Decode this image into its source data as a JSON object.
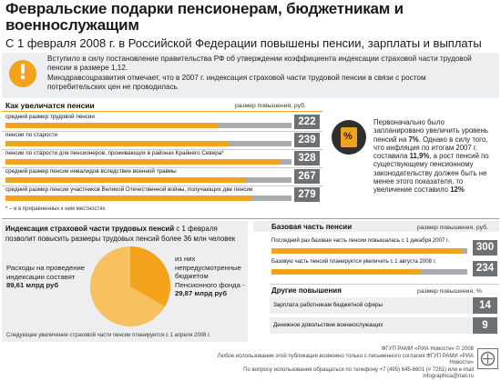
{
  "header": {
    "title": "Февральские подарки пенсионерам, бюджетникам и военнослужащим",
    "subtitle": "С 1 февраля 2008 г. в Российской Федерации повышены пенсии, зарплаты и выплаты"
  },
  "top_note": {
    "icon": "exclamation-icon",
    "p1": "Вступило в силу постановление правительства РФ об утверждении коэффициента индексации страховой части трудовой пенсии в размере 1,12.",
    "p2": "Минздравсоцразвития отмечает, что в 2007 г. индексация страховой части трудовой пенсии в связи с ростом потребительских цен не проводилась"
  },
  "pensions": {
    "title": "Как увеличатся пенсии",
    "units": "размер повышения, руб.",
    "rows": [
      {
        "label": "средний размер трудовой пенсии",
        "value": "222",
        "amount": 222
      },
      {
        "label": "пенсии по старости",
        "value": "239",
        "amount": 239
      },
      {
        "label": "пенсии по старости для пенсионеров, проживающих в районах Крайнего Севера*",
        "value": "328",
        "amount": 328
      },
      {
        "label": "средний размер пенсии инвалидов вследствие военной травмы",
        "value": "267",
        "amount": 267
      },
      {
        "label": "средний размер пенсии участников Великой Отечественной войны, получающих две пенсии",
        "value": "279",
        "amount": 279
      }
    ],
    "footnote": "* – и в приравненных к ним местностях"
  },
  "side_note": {
    "t1": "Первоначально было запланировано увеличить уровень пенсий на ",
    "pct1": "7%",
    "t2": ". Однако в силу того, что инфляция по итогам 2007 г. составила ",
    "pct2": "11,9%",
    "t3": ", а рост пенсий по существующему пенсионному законодательству должен быть не менее этого показателя, то увеличение составило ",
    "pct3": "12%",
    "icon_label": "%"
  },
  "indexation": {
    "title": "Индексация страховой части трудовых пенсий",
    "title_tail": " с 1 февраля",
    "line2": "позволит повысить размеры трудовых пенсий более 36 млн человек",
    "left_text1": "Расходы на проведение индексации составят",
    "left_bold": "89,61 млрд руб",
    "right_text1": "из них непредусмотренные бюджетом Пенсионного фонда -",
    "right_bold": "29,87 млрд руб",
    "pie_share": 0.333,
    "note": "Следующее увеличение страховой части пенсии планируется с 1 апреля 2008 г."
  },
  "base_pension": {
    "title": "Базовая часть пенсии",
    "units": "размер повышения, руб.",
    "rows": [
      {
        "label": "Последний раз базовая часть пенсии повышалась с 1 декабря 2007 г.",
        "value": "300",
        "amount": 300
      },
      {
        "label": "Базовую часть пенсий планируется увеличить с 1 августа 2008 г.",
        "value": "234",
        "amount": 234
      }
    ]
  },
  "other": {
    "title": "Другие повышения",
    "units": "размер повышения, %",
    "rows": [
      {
        "label": "Зарплата работникам бюджетной сферы",
        "value": "14"
      },
      {
        "label": "Денежное довольствие военнослужащих",
        "value": "9"
      }
    ]
  },
  "footer": {
    "line1": "ФГУП РАМИ «РИА Новости» © 2008",
    "line2": "Любое использование этой публикации возможно только с письменного согласия  ФГУП РАМИ «РИА Новости»",
    "line3": "По вопросу использования обращаться по телефону +7 (495) 645-6601 (# 7251) или e-mail infographica@rian.ru"
  },
  "colors": {
    "accent": "#f2a21b",
    "value_box": "#6d7174",
    "panel": "#eceef0"
  }
}
